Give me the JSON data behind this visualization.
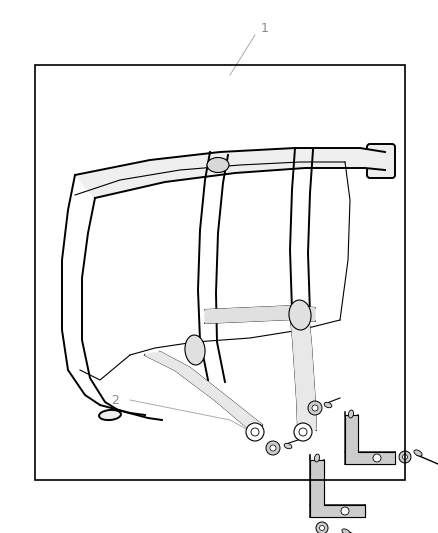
{
  "background_color": "#ffffff",
  "border_color": "#000000",
  "line_color": "#000000",
  "label_color": "#888888",
  "fig_width": 4.38,
  "fig_height": 5.33,
  "dpi": 100,
  "label1": "1",
  "label2": "2"
}
